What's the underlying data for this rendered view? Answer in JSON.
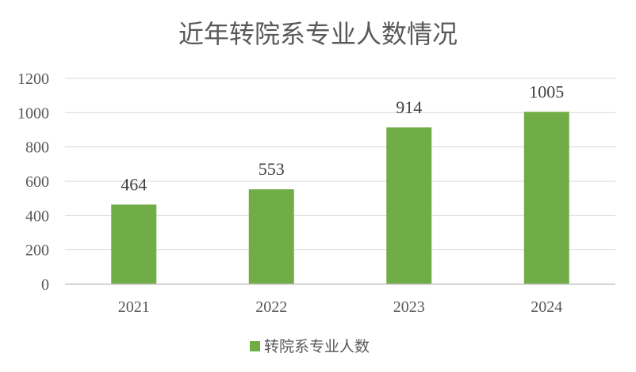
{
  "chart_data": {
    "type": "bar",
    "title": "近年转院系专业人数情况",
    "categories": [
      "2021",
      "2022",
      "2023",
      "2024"
    ],
    "series": [
      {
        "name": "转院系专业人数",
        "values": [
          464,
          553,
          914,
          1005
        ],
        "color": "#70ad47"
      }
    ],
    "ylim": [
      0,
      1200
    ],
    "yticks": [
      0,
      200,
      400,
      600,
      800,
      1000,
      1200
    ],
    "xlabel": "",
    "ylabel": "",
    "grid": true,
    "legend": "bottom",
    "data_labels": true
  }
}
